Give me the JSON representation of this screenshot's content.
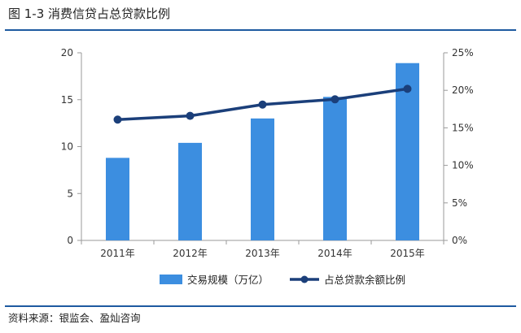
{
  "figure": {
    "title": "图 1-3  消费信贷占总贷款比例",
    "source": "资料来源：银监会、盈灿咨询"
  },
  "chart_data": {
    "type": "bar",
    "categories": [
      "2011年",
      "2012年",
      "2013年",
      "2014年",
      "2015年"
    ],
    "series": [
      {
        "name": "交易规模（万亿）",
        "kind": "bar",
        "axis": "left",
        "color": "#3c8ee0",
        "values": [
          8.8,
          10.4,
          13.0,
          15.3,
          18.9
        ]
      },
      {
        "name": "占总贷款余额比例",
        "kind": "line",
        "axis": "right",
        "color": "#1b3f7a",
        "values": [
          16.1,
          16.6,
          18.1,
          18.8,
          20.2
        ]
      }
    ],
    "y_left": {
      "min": 0,
      "max": 20,
      "ticks": [
        "0",
        "5",
        "10",
        "15",
        "20"
      ]
    },
    "y_right": {
      "min": 0,
      "max": 25,
      "ticks": [
        "0%",
        "5%",
        "10%",
        "15%",
        "20%",
        "25%"
      ]
    },
    "legend_position": "bottom-center"
  }
}
